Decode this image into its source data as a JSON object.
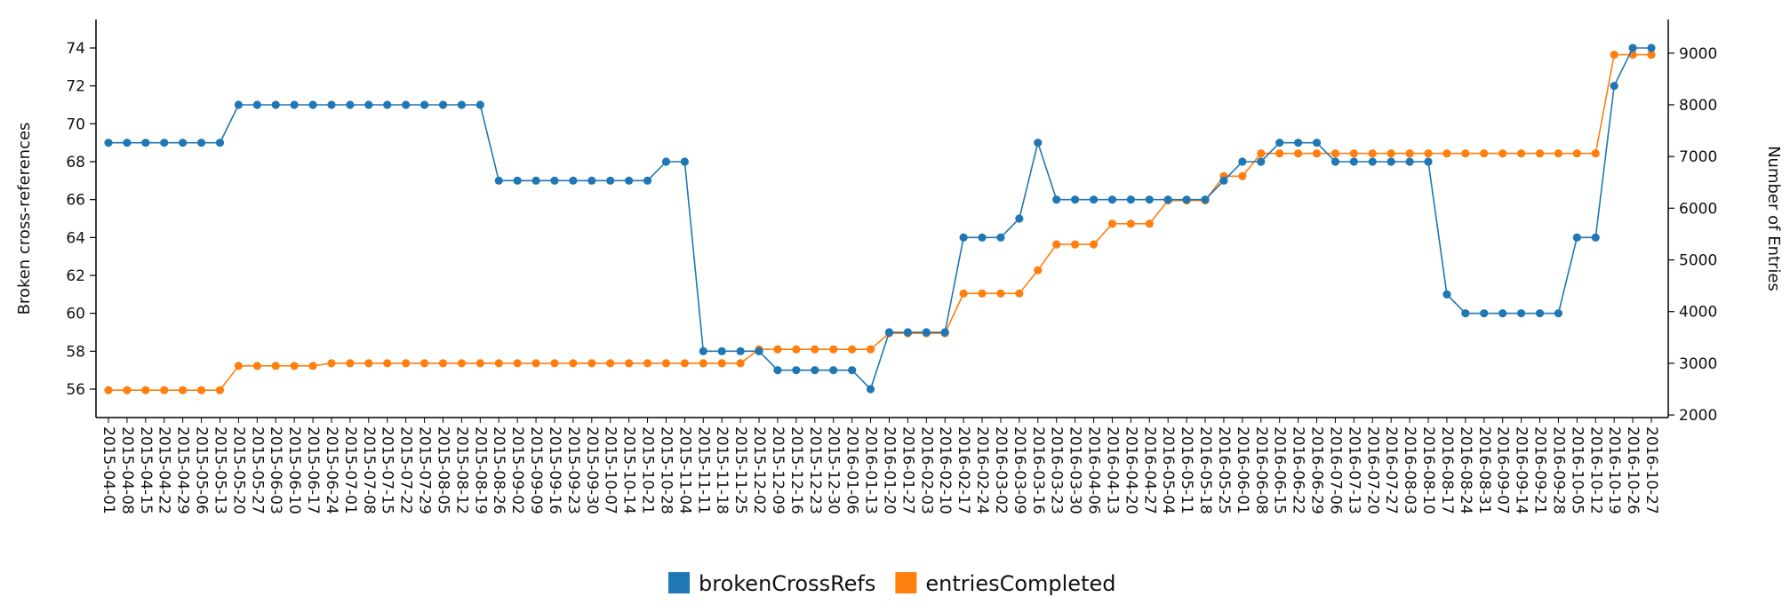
{
  "chart_data": {
    "type": "line",
    "title": "",
    "x": [
      "2015-04-01",
      "2015-04-08",
      "2015-04-15",
      "2015-04-22",
      "2015-04-29",
      "2015-05-06",
      "2015-05-13",
      "2015-05-20",
      "2015-05-27",
      "2015-06-03",
      "2015-06-10",
      "2015-06-17",
      "2015-06-24",
      "2015-07-01",
      "2015-07-08",
      "2015-07-15",
      "2015-07-22",
      "2015-07-29",
      "2015-08-05",
      "2015-08-12",
      "2015-08-19",
      "2015-08-26",
      "2015-09-02",
      "2015-09-09",
      "2015-09-16",
      "2015-09-23",
      "2015-09-30",
      "2015-10-07",
      "2015-10-14",
      "2015-10-21",
      "2015-10-28",
      "2015-11-04",
      "2015-11-11",
      "2015-11-18",
      "2015-11-25",
      "2015-12-02",
      "2015-12-09",
      "2015-12-16",
      "2015-12-23",
      "2015-12-30",
      "2016-01-06",
      "2016-01-13",
      "2016-01-20",
      "2016-01-27",
      "2016-02-03",
      "2016-02-10",
      "2016-02-17",
      "2016-02-24",
      "2016-03-02",
      "2016-03-09",
      "2016-03-16",
      "2016-03-23",
      "2016-03-30",
      "2016-04-06",
      "2016-04-13",
      "2016-04-20",
      "2016-04-27",
      "2016-05-04",
      "2016-05-11",
      "2016-05-18",
      "2016-05-25",
      "2016-06-01",
      "2016-06-08",
      "2016-06-15",
      "2016-06-22",
      "2016-06-29",
      "2016-07-06",
      "2016-07-13",
      "2016-07-20",
      "2016-07-27",
      "2016-08-03",
      "2016-08-10",
      "2016-08-17",
      "2016-08-24",
      "2016-08-31",
      "2016-09-07",
      "2016-09-14",
      "2016-09-21",
      "2016-09-28",
      "2016-10-05",
      "2016-10-12",
      "2016-10-19",
      "2016-10-26",
      "2016-10-27"
    ],
    "series": [
      {
        "name": "brokenCrossRefs",
        "axis": "left",
        "color": "#1f77b4",
        "values": [
          69,
          69,
          69,
          69,
          69,
          69,
          69,
          71,
          71,
          71,
          71,
          71,
          71,
          71,
          71,
          71,
          71,
          71,
          71,
          71,
          71,
          67,
          67,
          67,
          67,
          67,
          67,
          67,
          67,
          67,
          68,
          68,
          58,
          58,
          58,
          58,
          57,
          57,
          57,
          57,
          57,
          56,
          59,
          59,
          59,
          59,
          64,
          64,
          64,
          65,
          69,
          66,
          66,
          66,
          66,
          66,
          66,
          66,
          66,
          66,
          67,
          68,
          68,
          69,
          69,
          69,
          68,
          68,
          68,
          68,
          68,
          68,
          61,
          60,
          60,
          60,
          60,
          60,
          60,
          64,
          64,
          72,
          74,
          74
        ]
      },
      {
        "name": "entriesCompleted",
        "axis": "right",
        "color": "#ff7f0e",
        "values": [
          2480,
          2480,
          2480,
          2480,
          2480,
          2480,
          2480,
          2950,
          2950,
          2950,
          2950,
          2950,
          3000,
          3000,
          3000,
          3000,
          3000,
          3000,
          3000,
          3000,
          3000,
          3000,
          3000,
          3000,
          3000,
          3000,
          3000,
          3000,
          3000,
          3000,
          3000,
          3000,
          3000,
          3000,
          3000,
          3270,
          3270,
          3270,
          3270,
          3270,
          3270,
          3270,
          3580,
          3580,
          3580,
          3580,
          4350,
          4350,
          4350,
          4350,
          4800,
          5300,
          5300,
          5300,
          5700,
          5700,
          5700,
          6150,
          6150,
          6150,
          6620,
          6620,
          7060,
          7060,
          7060,
          7060,
          7060,
          7060,
          7060,
          7060,
          7060,
          7060,
          7060,
          7060,
          7060,
          7060,
          7060,
          7060,
          7060,
          7060,
          7060,
          8970,
          8970,
          8970
        ]
      }
    ],
    "ylabel": "Broken cross-references",
    "ylabel_right": "Number of Entries",
    "ylim": [
      54.5,
      75.5
    ],
    "ylim_right": [
      1950,
      9650
    ],
    "yticks": [
      56,
      58,
      60,
      62,
      64,
      66,
      68,
      70,
      72,
      74
    ],
    "yticks_right": [
      2000,
      3000,
      4000,
      5000,
      6000,
      7000,
      8000,
      9000
    ],
    "legend": [
      "brokenCrossRefs",
      "entriesCompleted"
    ],
    "legend_position": "bottom-center",
    "grid": false
  }
}
